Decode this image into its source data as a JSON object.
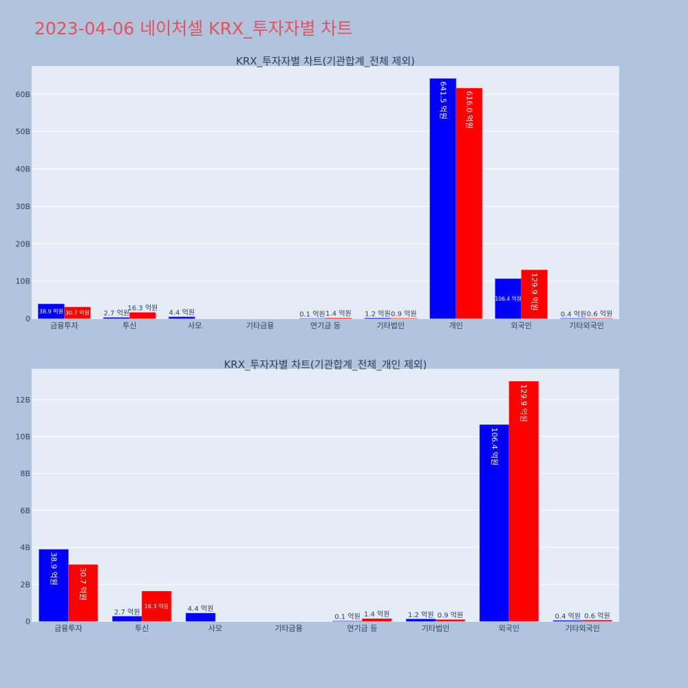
{
  "page": {
    "title": "2023-04-06 네이처셀 KRX_투자자별 차트"
  },
  "colors": {
    "background": "#b0c4de",
    "plot_bg": "#e5ecf6",
    "grid": "#ffffff",
    "title": "#e8505b",
    "text": "#2a3f5f",
    "series_a": "#0000ff",
    "series_b": "#ff0000"
  },
  "chart_data": [
    {
      "type": "bar",
      "title": "KRX_투자자별 차트(기관합계_전체 제외)",
      "categories": [
        "금융투자",
        "투신",
        "사모",
        "기타금융",
        "연기금 등",
        "기타법인",
        "개인",
        "외국인",
        "기타외국인"
      ],
      "series": [
        {
          "color": "#0000ff",
          "values": [
            3.89,
            0.27,
            0.44,
            0,
            0.01,
            0.12,
            64.15,
            10.64,
            0.04
          ],
          "labels": [
            "38.9 억원",
            "2.7 억원",
            "4.4 억원",
            "",
            "0.1 억원",
            "1.2 억원",
            "641.5 억원",
            "106.4 억원",
            "0.4 억원"
          ]
        },
        {
          "color": "#ff0000",
          "values": [
            3.07,
            1.63,
            0,
            0,
            0.14,
            0.09,
            61.6,
            12.99,
            0.06
          ],
          "labels": [
            "30.7 억원",
            "16.3 억원",
            "",
            "",
            "1.4 억원",
            "0.9 억원",
            "616.0 억원",
            "129.9 억원",
            "0.6 억원"
          ]
        }
      ],
      "y_ticks": [
        "0",
        "10B",
        "20B",
        "30B",
        "40B",
        "50B",
        "60B"
      ],
      "y_tick_values": [
        0,
        10,
        20,
        30,
        40,
        50,
        60
      ],
      "y_range": [
        0,
        67.5
      ],
      "grid": true
    },
    {
      "type": "bar",
      "title": "KRX_투자자별 차트(기관합계_전체_개인 제외)",
      "categories": [
        "금융투자",
        "투신",
        "사모",
        "기타금융",
        "연기금 등",
        "기타법인",
        "외국인",
        "기타외국인"
      ],
      "series": [
        {
          "color": "#0000ff",
          "values": [
            3.89,
            0.27,
            0.44,
            0,
            0.01,
            0.12,
            10.64,
            0.04
          ],
          "labels": [
            "38.9 억원",
            "2.7 억원",
            "4.4 억원",
            "",
            "0.1 억원",
            "1.2 억원",
            "106.4 억원",
            "0.4 억원"
          ]
        },
        {
          "color": "#ff0000",
          "values": [
            3.07,
            1.63,
            0,
            0,
            0.14,
            0.09,
            12.99,
            0.06
          ],
          "labels": [
            "30.7 억원",
            "16.3 억원",
            "",
            "",
            "1.4 억원",
            "0.9 억원",
            "129.9 억원",
            "0.6 억원"
          ]
        }
      ],
      "y_ticks": [
        "0",
        "2B",
        "4B",
        "6B",
        "8B",
        "10B",
        "12B"
      ],
      "y_tick_values": [
        0,
        2,
        4,
        6,
        8,
        10,
        12
      ],
      "y_range": [
        0,
        13.67
      ],
      "grid": true
    }
  ]
}
